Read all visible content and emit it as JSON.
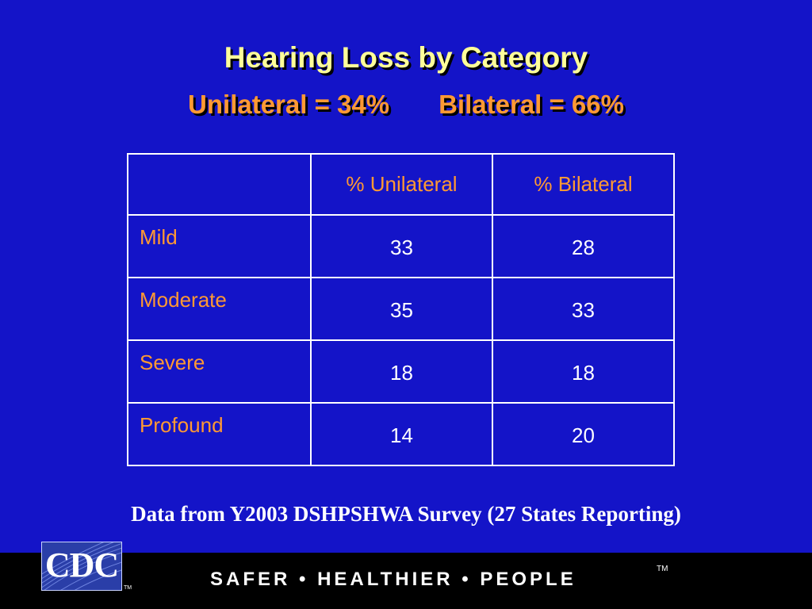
{
  "slide": {
    "title": "Hearing Loss by Category",
    "subtitle_left": "Unilateral = 34%",
    "subtitle_right": "Bilateral = 66%"
  },
  "table": {
    "columns": [
      "",
      "% Unilateral",
      "% Bilateral"
    ],
    "rows": [
      {
        "label": "Mild",
        "unilateral": "33",
        "bilateral": "28"
      },
      {
        "label": "Moderate",
        "unilateral": "35",
        "bilateral": "33"
      },
      {
        "label": "Severe",
        "unilateral": "18",
        "bilateral": "18"
      },
      {
        "label": "Profound",
        "unilateral": "14",
        "bilateral": "20"
      }
    ]
  },
  "source_note": "Data from Y2003 DSHPSHWA Survey (27 States Reporting)",
  "footer": {
    "logo_text": "CDC",
    "logo_tm": "TM",
    "tagline": "SAFER • HEALTHIER • PEOPLE",
    "tagline_tm": "TM"
  },
  "colors": {
    "background": "#1414c8",
    "title": "#ffff99",
    "accent": "#ff9933",
    "text": "#ffffff",
    "footer": "#000000"
  }
}
